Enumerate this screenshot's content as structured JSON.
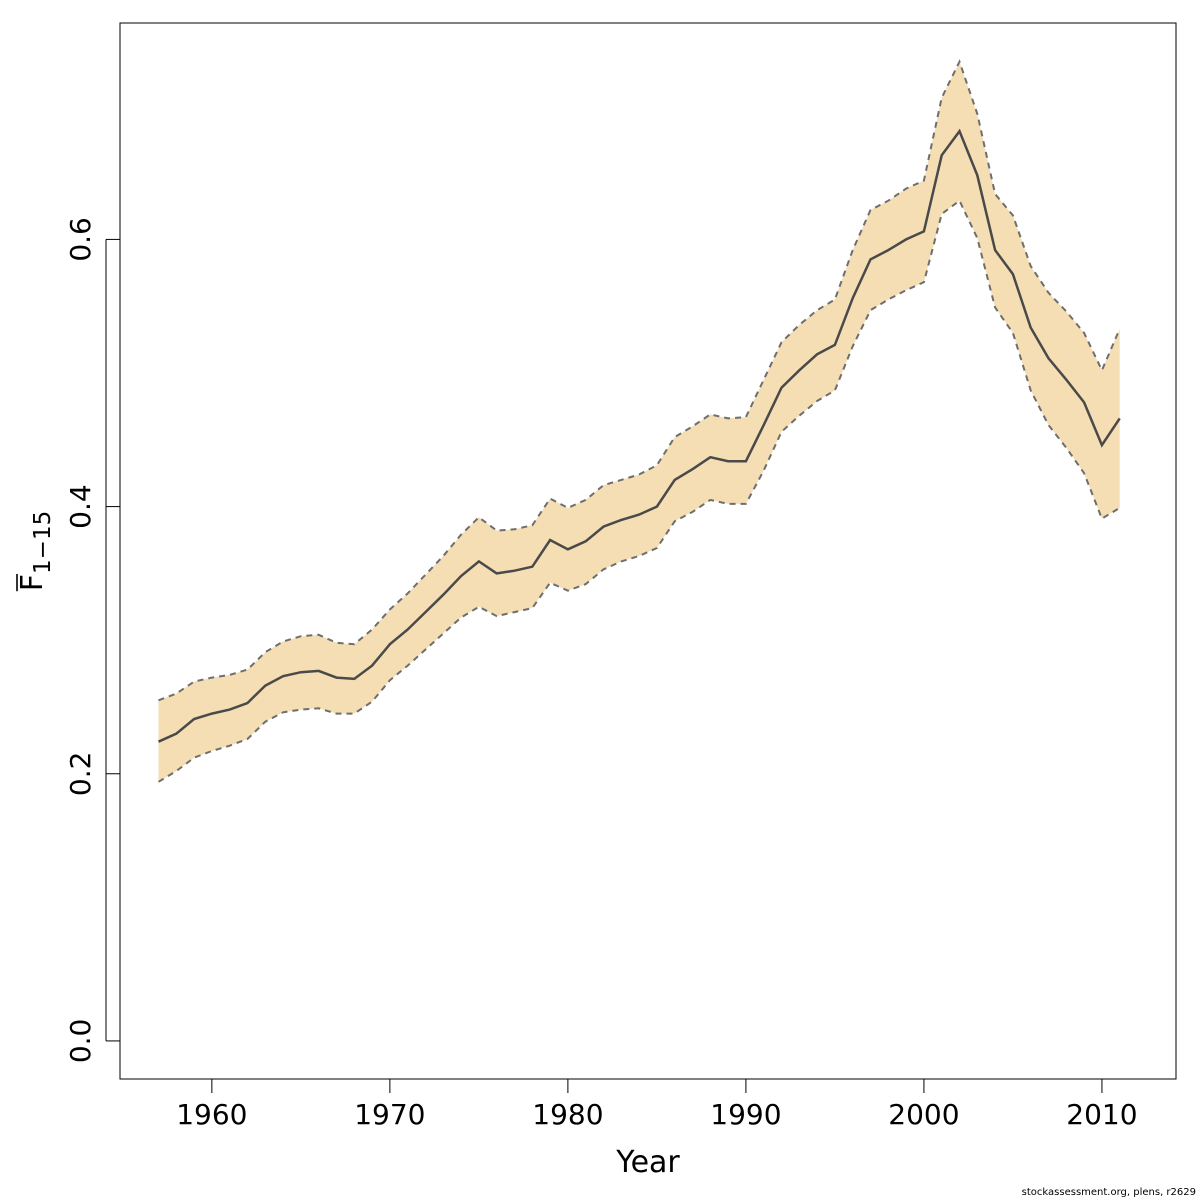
{
  "chart_data": {
    "type": "line",
    "title": "",
    "xlabel": "Year",
    "ylabel_main": "F",
    "ylabel_sub": "1−15",
    "xlim": [
      1954.84,
      2014.16
    ],
    "ylim": [
      -0.0285,
      0.762
    ],
    "x_ticks": [
      1960,
      1970,
      1980,
      1990,
      2000,
      2010
    ],
    "x_tick_labels": [
      "1960",
      "1970",
      "1980",
      "1990",
      "2000",
      "2010"
    ],
    "y_ticks": [
      0.0,
      0.2,
      0.4,
      0.6
    ],
    "y_tick_labels": [
      "0.0",
      "0.2",
      "0.4",
      "0.6"
    ],
    "grid": false,
    "band_color": "#F5DEB3",
    "line_color": "#4A4A4A",
    "bound_color": "#6E6E6E",
    "x": [
      1957,
      1958,
      1959,
      1960,
      1961,
      1962,
      1963,
      1964,
      1965,
      1966,
      1967,
      1968,
      1969,
      1970,
      1971,
      1972,
      1973,
      1974,
      1975,
      1976,
      1977,
      1978,
      1979,
      1980,
      1981,
      1982,
      1983,
      1984,
      1985,
      1986,
      1987,
      1988,
      1989,
      1990,
      1991,
      1992,
      1993,
      1994,
      1995,
      1996,
      1997,
      1998,
      1999,
      2000,
      2001,
      2002,
      2003,
      2004,
      2005,
      2006,
      2007,
      2008,
      2009,
      2010,
      2011
    ],
    "series": [
      {
        "role": "estimate",
        "values": [
          0.224,
          0.23,
          0.241,
          0.245,
          0.248,
          0.253,
          0.266,
          0.273,
          0.276,
          0.277,
          0.272,
          0.271,
          0.281,
          0.297,
          0.308,
          0.321,
          0.334,
          0.348,
          0.359,
          0.35,
          0.352,
          0.355,
          0.375,
          0.368,
          0.374,
          0.385,
          0.39,
          0.394,
          0.4,
          0.42,
          0.428,
          0.437,
          0.434,
          0.434,
          0.461,
          0.489,
          0.502,
          0.514,
          0.521,
          0.556,
          0.585,
          0.592,
          0.6,
          0.606,
          0.663,
          0.681,
          0.648,
          0.592,
          0.574,
          0.534,
          0.511,
          0.495,
          0.478,
          0.446,
          0.466
        ]
      },
      {
        "role": "upper",
        "values": [
          0.255,
          0.26,
          0.269,
          0.272,
          0.274,
          0.278,
          0.291,
          0.299,
          0.303,
          0.304,
          0.298,
          0.297,
          0.308,
          0.323,
          0.335,
          0.349,
          0.363,
          0.379,
          0.392,
          0.382,
          0.383,
          0.386,
          0.406,
          0.399,
          0.405,
          0.416,
          0.42,
          0.424,
          0.431,
          0.452,
          0.46,
          0.469,
          0.466,
          0.467,
          0.495,
          0.523,
          0.536,
          0.547,
          0.555,
          0.592,
          0.622,
          0.629,
          0.638,
          0.644,
          0.706,
          0.733,
          0.694,
          0.634,
          0.618,
          0.58,
          0.56,
          0.546,
          0.53,
          0.502,
          0.533
        ]
      },
      {
        "role": "lower",
        "values": [
          0.194,
          0.202,
          0.212,
          0.217,
          0.221,
          0.226,
          0.239,
          0.246,
          0.248,
          0.249,
          0.245,
          0.245,
          0.254,
          0.27,
          0.281,
          0.293,
          0.305,
          0.317,
          0.325,
          0.318,
          0.321,
          0.324,
          0.343,
          0.337,
          0.342,
          0.353,
          0.359,
          0.363,
          0.369,
          0.389,
          0.396,
          0.405,
          0.402,
          0.402,
          0.427,
          0.456,
          0.468,
          0.479,
          0.487,
          0.52,
          0.547,
          0.555,
          0.562,
          0.568,
          0.619,
          0.629,
          0.601,
          0.549,
          0.53,
          0.487,
          0.461,
          0.444,
          0.425,
          0.391,
          0.399
        ]
      }
    ]
  },
  "credit": "stockassessment.org, plens, r2629"
}
